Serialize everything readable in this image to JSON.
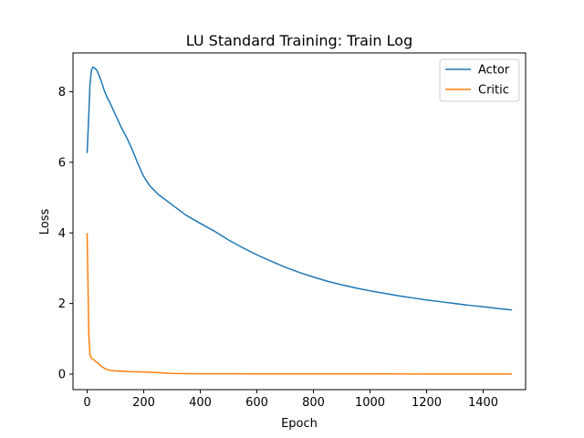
{
  "chart_data": {
    "type": "line",
    "title": "LU Standard Training: Train Log",
    "xlabel": "Epoch",
    "ylabel": "Loss",
    "xlim": [
      -50,
      1550
    ],
    "ylim": [
      -0.44,
      9.1
    ],
    "xticks": [
      0,
      200,
      400,
      600,
      800,
      1000,
      1200,
      1400
    ],
    "yticks": [
      0,
      2,
      4,
      6,
      8
    ],
    "grid": false,
    "legend": "top-right",
    "series": [
      {
        "name": "Actor",
        "color": "#1f77b4",
        "x": [
          0,
          5,
          10,
          15,
          20,
          25,
          30,
          35,
          40,
          50,
          60,
          70,
          80,
          100,
          120,
          140,
          160,
          180,
          200,
          220,
          250,
          300,
          350,
          400,
          450,
          500,
          550,
          600,
          650,
          700,
          750,
          800,
          850,
          900,
          950,
          1000,
          1050,
          1100,
          1150,
          1200,
          1250,
          1300,
          1350,
          1400,
          1450,
          1500
        ],
        "y": [
          6.28,
          7.2,
          8.2,
          8.6,
          8.7,
          8.68,
          8.64,
          8.6,
          8.5,
          8.3,
          8.05,
          7.85,
          7.7,
          7.35,
          7.0,
          6.7,
          6.35,
          5.95,
          5.6,
          5.35,
          5.1,
          4.8,
          4.5,
          4.27,
          4.05,
          3.8,
          3.58,
          3.38,
          3.2,
          3.03,
          2.88,
          2.75,
          2.63,
          2.53,
          2.44,
          2.36,
          2.29,
          2.22,
          2.16,
          2.1,
          2.05,
          2.0,
          1.95,
          1.91,
          1.86,
          1.82
        ]
      },
      {
        "name": "Critic",
        "color": "#ff7f0e",
        "x": [
          0,
          3,
          6,
          10,
          15,
          20,
          25,
          30,
          40,
          50,
          60,
          70,
          80,
          100,
          150,
          200,
          250,
          300,
          400,
          500,
          600,
          800,
          1000,
          1200,
          1400,
          1500
        ],
        "y": [
          3.98,
          2.5,
          1.1,
          0.55,
          0.45,
          0.42,
          0.4,
          0.36,
          0.3,
          0.22,
          0.17,
          0.13,
          0.11,
          0.09,
          0.07,
          0.06,
          0.04,
          0.02,
          0.01,
          0.008,
          0.006,
          0.005,
          0.005,
          0.004,
          0.004,
          0.004
        ]
      }
    ]
  }
}
